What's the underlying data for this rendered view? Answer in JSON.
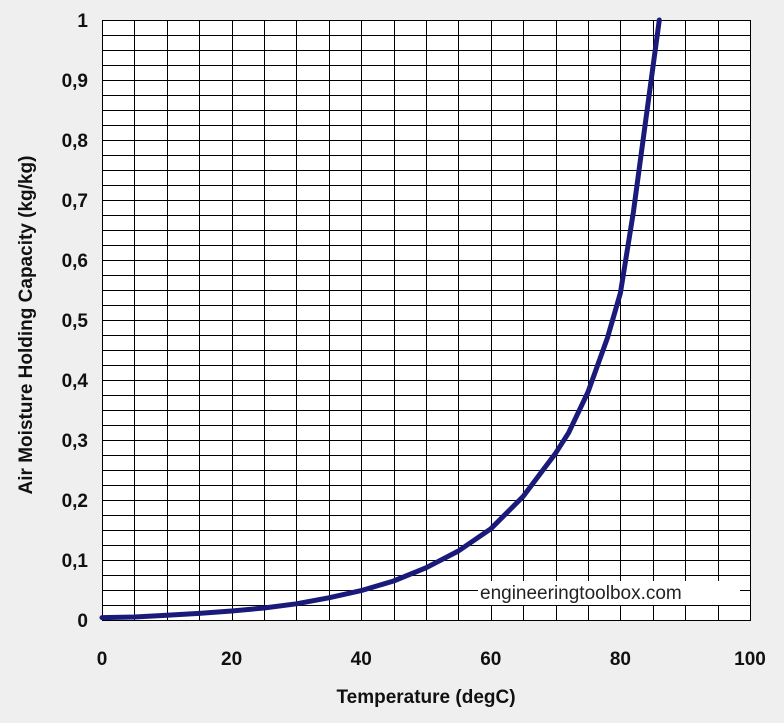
{
  "chart_data": {
    "type": "line",
    "title": "",
    "xlabel": "Temperature (degC)",
    "ylabel": "Air Moisture Holding Capacity (kg/kg)",
    "xlim": [
      0,
      100
    ],
    "ylim": [
      0,
      1
    ],
    "x_ticks": [
      0,
      20,
      40,
      60,
      80,
      100
    ],
    "x_tick_labels": [
      "0",
      "20",
      "40",
      "60",
      "80",
      "100"
    ],
    "y_ticks": [
      0,
      0.1,
      0.2,
      0.3,
      0.4,
      0.5,
      0.6,
      0.7,
      0.8,
      0.9,
      1
    ],
    "y_tick_labels": [
      "0",
      "0,1",
      "0,2",
      "0,3",
      "0,4",
      "0,5",
      "0,6",
      "0,7",
      "0,8",
      "0,9",
      "1"
    ],
    "x_grid_step": 5,
    "y_grid_step": 0.025,
    "grid": true,
    "colors": {
      "background": "#efefef",
      "plot_bg": "#ffffff",
      "grid": "#000000",
      "line": "#1a1a7a"
    },
    "series": [
      {
        "name": "Air Moisture Holding Capacity",
        "x": [
          0,
          5,
          10,
          15,
          20,
          25,
          30,
          35,
          40,
          45,
          50,
          55,
          60,
          65,
          70,
          72,
          75,
          78,
          80,
          82,
          84,
          85,
          86
        ],
        "y": [
          0.004,
          0.005,
          0.008,
          0.011,
          0.015,
          0.02,
          0.027,
          0.037,
          0.049,
          0.065,
          0.087,
          0.115,
          0.152,
          0.206,
          0.278,
          0.312,
          0.38,
          0.47,
          0.545,
          0.68,
          0.84,
          0.92,
          1.0
        ]
      }
    ],
    "annotations": [
      {
        "text": "engineeringtoolbox.com",
        "position": "bottom-right"
      }
    ]
  }
}
